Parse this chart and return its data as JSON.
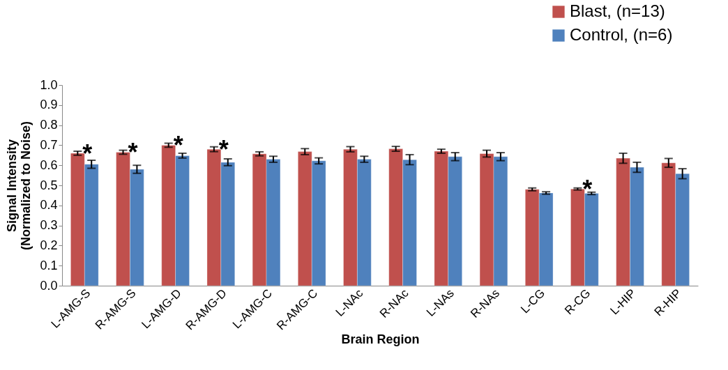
{
  "chart_data": {
    "type": "bar",
    "xlabel": "Brain Region",
    "ylabel": "Signal Intensity\n(Normalized to Noise)",
    "categories": [
      "L-AMG-S",
      "R-AMG-S",
      "L-AMG-D",
      "R-AMG-D",
      "L-AMG-C",
      "R-AMG-C",
      "L-NAc",
      "R-NAc",
      "L-NAs",
      "R-NAs",
      "L-CG",
      "R-CG",
      "L-HIP",
      "R-HIP"
    ],
    "series": [
      {
        "name": "Blast, (n=13)",
        "color": "#c0504d",
        "values": [
          0.66,
          0.665,
          0.7,
          0.68,
          0.657,
          0.668,
          0.68,
          0.682,
          0.67,
          0.658,
          0.48,
          0.482,
          0.635,
          0.612
        ],
        "errors": [
          0.01,
          0.01,
          0.01,
          0.012,
          0.01,
          0.015,
          0.013,
          0.012,
          0.01,
          0.017,
          0.007,
          0.005,
          0.025,
          0.022
        ]
      },
      {
        "name": "Control, (n=6)",
        "color": "#4f81bd",
        "values": [
          0.605,
          0.58,
          0.648,
          0.615,
          0.63,
          0.622,
          0.63,
          0.628,
          0.643,
          0.643,
          0.462,
          0.46,
          0.59,
          0.558
        ],
        "errors": [
          0.02,
          0.02,
          0.012,
          0.017,
          0.015,
          0.015,
          0.015,
          0.025,
          0.02,
          0.02,
          0.006,
          0.006,
          0.025,
          0.025
        ]
      }
    ],
    "ylim": [
      0,
      1
    ],
    "yticks": [
      {
        "value": 0,
        "label": "0.0"
      },
      0.1,
      0.2,
      0.3,
      0.4,
      0.5,
      0.6,
      0.7,
      0.8,
      0.9,
      {
        "value": 1,
        "label": "1.0"
      }
    ],
    "grid": false,
    "legend": "top right",
    "annotations": [
      {
        "text": "*",
        "x": "L-AMG-S",
        "y": 0.66
      },
      {
        "text": "*",
        "x": "R-AMG-S",
        "y": 0.665
      },
      {
        "text": "*",
        "x": "L-AMG-D",
        "y": 0.7
      },
      {
        "text": "*",
        "x": "R-AMG-D",
        "y": 0.68
      },
      {
        "text": "*",
        "x": "R-CG",
        "y": 0.482
      }
    ]
  }
}
